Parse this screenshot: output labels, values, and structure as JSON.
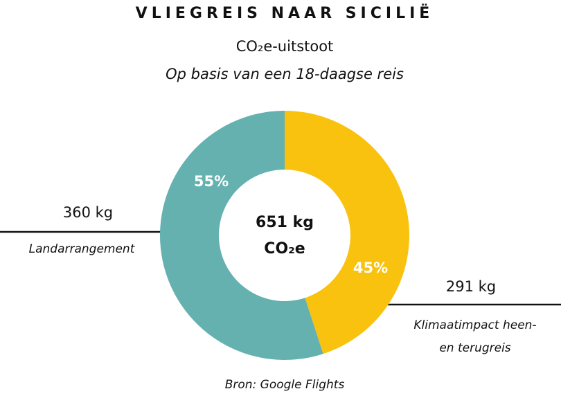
{
  "chart_data": {
    "type": "pie",
    "donut": true,
    "title": "VLIEGREIS NAAR SICILIË",
    "subtitle": "CO₂e-uitstoot",
    "subtitle2": "Op basis van een 18-daagse reis",
    "categories": [
      "Klimaatimpact heen- en terugreis",
      "Landarrangement"
    ],
    "values": [
      45,
      55
    ],
    "value_labels": [
      "45%",
      "55%"
    ],
    "amount_labels": [
      "291 kg",
      "360 kg"
    ],
    "colors": [
      "#f8c20f",
      "#64b1b0"
    ],
    "center_label": [
      "651 kg",
      "CO₂e"
    ],
    "source": "Bron: Google Flights"
  }
}
